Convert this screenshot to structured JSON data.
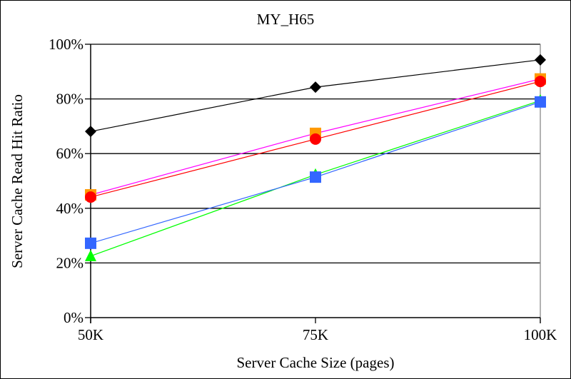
{
  "chart_data": {
    "type": "line",
    "title": "MY_H65",
    "xlabel": "Server Cache Size (pages)",
    "ylabel": "Server Cache Read Hit Ratio",
    "categories": [
      "50K",
      "75K",
      "100K"
    ],
    "ylim": [
      0,
      100
    ],
    "yticks": [
      0,
      20,
      40,
      60,
      80,
      100
    ],
    "ytick_labels": [
      "0%",
      "20%",
      "40%",
      "60%",
      "80%",
      "100%"
    ],
    "grid": true,
    "legend": "none",
    "series": [
      {
        "name": "black-diamond",
        "color": "#000000",
        "marker_color": "#000000",
        "marker": "diamond",
        "values": [
          68.1,
          84.3,
          94.3
        ]
      },
      {
        "name": "orange-square",
        "color": "#FF00FF",
        "marker_color": "#FF9900",
        "marker": "square",
        "values": [
          44.9,
          67.4,
          87.3
        ]
      },
      {
        "name": "red-circle",
        "color": "#FF0000",
        "marker_color": "#FF0000",
        "marker": "circle",
        "values": [
          44.1,
          65.3,
          86.4
        ]
      },
      {
        "name": "green-triangle",
        "color": "#00FF00",
        "marker_color": "#00FF00",
        "marker": "triangle",
        "values": [
          22.5,
          52.3,
          79.4
        ]
      },
      {
        "name": "blue-square",
        "color": "#3366FF",
        "marker_color": "#3366FF",
        "marker": "square",
        "values": [
          27.2,
          51.4,
          78.9
        ]
      }
    ]
  }
}
